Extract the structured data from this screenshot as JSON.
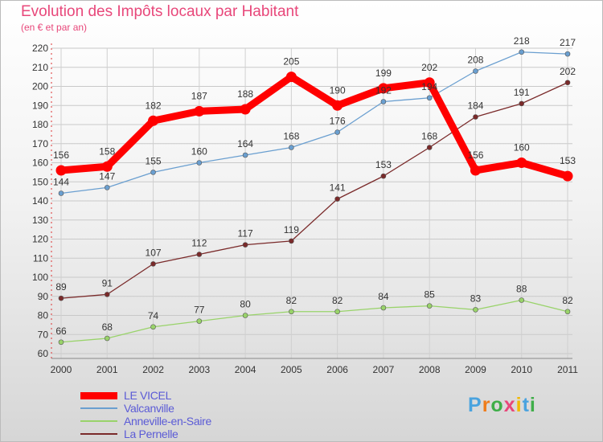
{
  "chart_data": {
    "type": "line",
    "title": "Evolution des Impôts locaux par Habitant",
    "subtitle": "(en € et par an)",
    "x": [
      "2000",
      "2001",
      "2002",
      "2003",
      "2004",
      "2005",
      "2006",
      "2007",
      "2008",
      "2009",
      "2010",
      "2011"
    ],
    "ylim": [
      60,
      220
    ],
    "yticks": [
      60,
      70,
      80,
      90,
      100,
      110,
      120,
      130,
      140,
      150,
      160,
      170,
      180,
      190,
      200,
      210,
      220
    ],
    "grid": true,
    "legend_position": "bottom-left",
    "series": [
      {
        "name": "LE VICEL",
        "color": "#ff0000",
        "values": [
          156,
          158,
          182,
          187,
          188,
          205,
          190,
          199,
          202,
          156,
          160,
          153
        ]
      },
      {
        "name": "Valcanville",
        "color": "#6a9fd0",
        "values": [
          144,
          147,
          155,
          160,
          164,
          168,
          176,
          192,
          194,
          208,
          218,
          217
        ]
      },
      {
        "name": "Anneville-en-Saire",
        "color": "#99d36a",
        "values": [
          66,
          68,
          74,
          77,
          80,
          82,
          82,
          84,
          85,
          83,
          88,
          82
        ]
      },
      {
        "name": "La Pernelle",
        "color": "#7a2a2a",
        "values": [
          89,
          91,
          107,
          112,
          117,
          119,
          141,
          153,
          168,
          184,
          191,
          202
        ]
      }
    ]
  },
  "logo": {
    "text": "Proxiti",
    "letter_colors": [
      "#4aa3df",
      "#ef7c1a",
      "#3fae49",
      "#e8477a",
      "#f2b800",
      "#4aa3df",
      "#3fae49"
    ]
  }
}
